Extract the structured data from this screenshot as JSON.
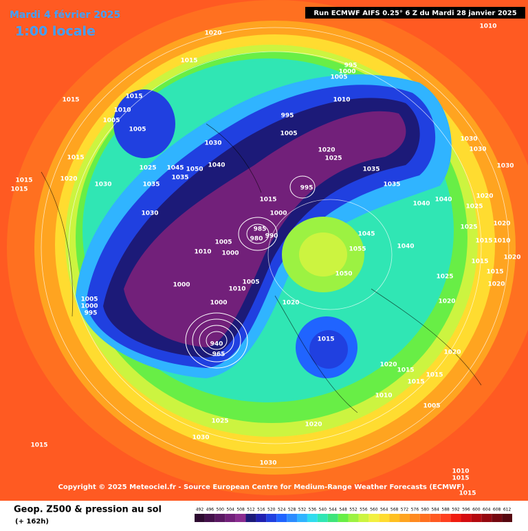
{
  "header": {
    "date": "Mardi 4 février 2025",
    "time": "1:00 locale",
    "run": "Run ECMWF AIFS 0.25° 6 Z du Mardi 28 janvier 2025"
  },
  "copyright": "Copyright © 2025 Meteociel.fr - Source European Centre for Medium-Range Weather Forecasts (ECMWF)",
  "legend": {
    "title": "Geop. Z500 & pression au sol",
    "lead": "(+ 162h)",
    "scale": [
      492,
      496,
      500,
      504,
      508,
      512,
      516,
      520,
      524,
      528,
      532,
      536,
      540,
      544,
      548,
      552,
      556,
      560,
      564,
      568,
      572,
      576,
      580,
      584,
      588,
      592,
      596,
      600,
      604,
      608,
      612
    ],
    "colors": [
      "#2d0a30",
      "#43104a",
      "#5a1862",
      "#72207a",
      "#8a2c90",
      "#1c1a78",
      "#2020b0",
      "#2040e0",
      "#2064ff",
      "#2c8cff",
      "#30b4ff",
      "#30dcee",
      "#30e6b4",
      "#3ee47a",
      "#68ee46",
      "#9cf242",
      "#ccf440",
      "#f2f040",
      "#ffdc30",
      "#ffc020",
      "#ffa420",
      "#ff8a20",
      "#ff7020",
      "#ff5a22",
      "#ff4020",
      "#f01c10",
      "#d40c10",
      "#b40a10",
      "#940810",
      "#740810",
      "#560810"
    ]
  },
  "isobar_labels": [
    1020,
    1015,
    1015,
    1010,
    1005,
    1005,
    1015,
    1030,
    1040,
    1025,
    1045,
    1050,
    1035,
    1035,
    1030,
    1020,
    1015,
    1030,
    1015,
    1015,
    995,
    1000,
    1005,
    1010,
    995,
    1005,
    1020,
    1025,
    1035,
    1035,
    995,
    1015,
    1000,
    985,
    980,
    990,
    1005,
    1000,
    1010,
    1000,
    1005,
    1010,
    1020,
    1000,
    940,
    965,
    1005,
    1000,
    995,
    1055,
    1050,
    1045,
    1040,
    1015,
    1040,
    1040,
    1030,
    1030,
    1030,
    1025,
    1020,
    1025,
    1015,
    1010,
    1020,
    1020,
    1015,
    1015,
    1020,
    1025,
    1020,
    1020,
    1020,
    1015,
    1015,
    1015,
    1010,
    1005,
    1020,
    1025,
    1030,
    1030,
    1015,
    1010,
    1010,
    1015,
    1015
  ]
}
